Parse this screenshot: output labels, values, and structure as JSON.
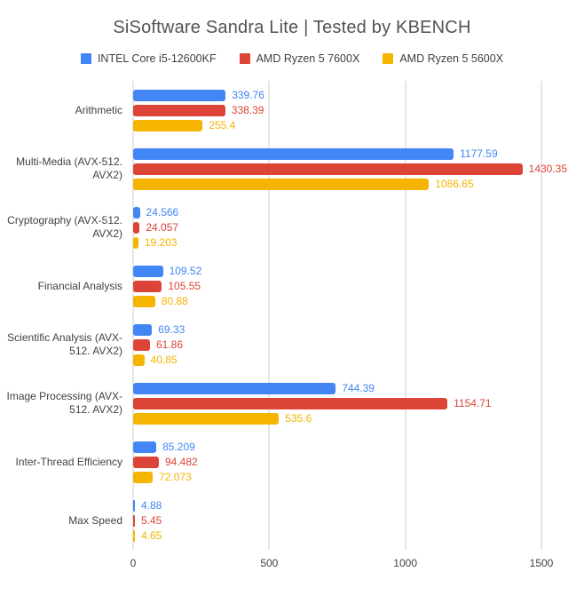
{
  "chart_data": {
    "type": "bar",
    "orientation": "horizontal",
    "title": "SiSoftware Sandra Lite | Tested by KBENCH",
    "categories": [
      "Arithmetic",
      "Multi-Media (AVX-512. AVX2)",
      "Cryptography (AVX-512. AVX2)",
      "Financial Analysis",
      "Scientific Analysis (AVX-512. AVX2)",
      "Image Processing (AVX-512. AVX2)",
      "Inter-Thread Efficiency",
      "Max Speed"
    ],
    "series": [
      {
        "name": "INTEL Core i5-12600KF",
        "color": "#4285F4",
        "values": [
          339.76,
          1177.59,
          24.566,
          109.52,
          69.33,
          744.39,
          85.209,
          4.88
        ]
      },
      {
        "name": "AMD Ryzen 5 7600X",
        "color": "#DB4437",
        "values": [
          338.39,
          1430.35,
          24.057,
          105.55,
          61.86,
          1154.71,
          94.482,
          5.45
        ]
      },
      {
        "name": "AMD Ryzen 5 5600X",
        "color": "#F4B400",
        "values": [
          255.4,
          1086.65,
          19.203,
          80.88,
          40.85,
          535.6,
          72.073,
          4.65
        ]
      }
    ],
    "xlim": [
      0,
      1500
    ],
    "x_ticks": [
      0,
      500,
      1000,
      1500
    ],
    "x_tick_labels": [
      "0",
      "500",
      "1000",
      "1500"
    ],
    "grid": true,
    "grid_color": "#cccccc",
    "legend_position": "top"
  }
}
